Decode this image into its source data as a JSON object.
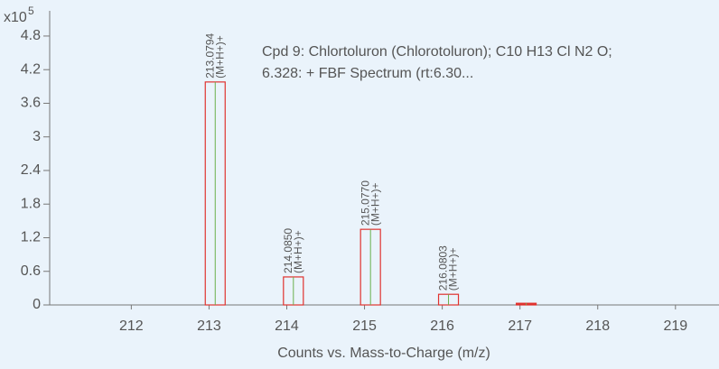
{
  "chart_data": {
    "type": "spectrum",
    "y_multiplier": {
      "base": "x10",
      "exponent": "5"
    },
    "annotation": [
      "Cpd 9: Chlortoluron (Chlorotoluron); C10 H13 Cl N2 O;",
      "6.328: + FBF Spectrum (rt:6.30..."
    ],
    "x_label": "Counts vs. Mass-to-Charge (m/z)",
    "x": [
      213.0794,
      214.085,
      215.077,
      216.0803,
      217.08
    ],
    "values": [
      3.98,
      0.5,
      1.35,
      0.19,
      0.03
    ],
    "peak_labels": [
      "213.0794",
      "214.0850",
      "215.0770",
      "216.0803",
      null
    ],
    "adduct_labels": [
      "(M+H+)+",
      "(M+H+)+",
      "(M+H+)+",
      "(M+H+)+",
      null
    ],
    "color": "#e0332f",
    "center_color": "#6ab04c",
    "xlim": [
      210.95,
      219.56
    ],
    "ylim": [
      0,
      5.25
    ],
    "xticks": [
      212,
      213,
      214,
      215,
      216,
      217,
      218,
      219
    ],
    "yticks": [
      0,
      0.6,
      1.2,
      1.8,
      2.4,
      3,
      3.6,
      4.2,
      4.8
    ]
  }
}
